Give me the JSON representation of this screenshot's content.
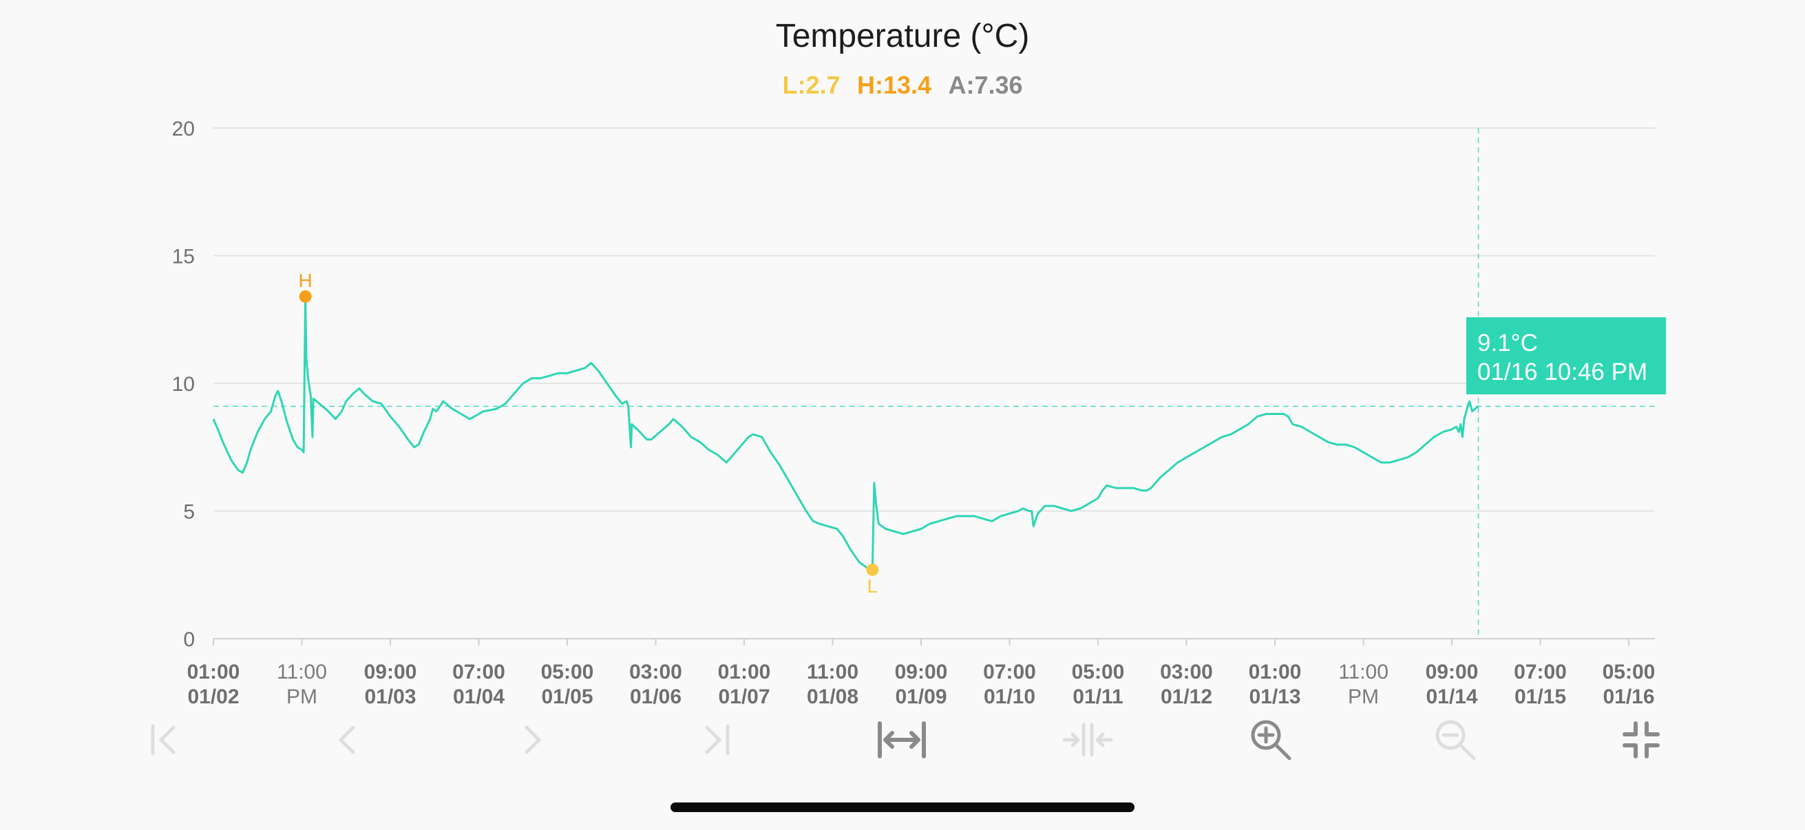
{
  "chart_data": {
    "type": "line",
    "title": "Temperature (°C)",
    "stats": {
      "low": {
        "label": "L:2.7",
        "value": 2.7,
        "color": "#f6c944"
      },
      "high": {
        "label": "H:13.4",
        "value": 13.4,
        "color": "#f5a01a"
      },
      "avg": {
        "label": "A:7.36",
        "value": 7.36,
        "color": "#8a8a8a"
      }
    },
    "ylim": [
      0,
      20
    ],
    "yticks": [
      "0",
      "5",
      "10",
      "15",
      "20"
    ],
    "grid": true,
    "line_color": "#2ed6b4",
    "xticks": [
      {
        "top": "01:00",
        "bottom": "01/02",
        "bold": true
      },
      {
        "top": "11:00",
        "bottom": "PM",
        "bold": false
      },
      {
        "top": "09:00",
        "bottom": "01/03",
        "bold": true
      },
      {
        "top": "07:00",
        "bottom": "01/04",
        "bold": true
      },
      {
        "top": "05:00",
        "bottom": "01/05",
        "bold": true
      },
      {
        "top": "03:00",
        "bottom": "01/06",
        "bold": true
      },
      {
        "top": "01:00",
        "bottom": "01/07",
        "bold": true
      },
      {
        "top": "11:00",
        "bottom": "01/08",
        "bold": true
      },
      {
        "top": "09:00",
        "bottom": "01/09",
        "bold": true
      },
      {
        "top": "07:00",
        "bottom": "01/10",
        "bold": true
      },
      {
        "top": "05:00",
        "bottom": "01/11",
        "bold": true
      },
      {
        "top": "03:00",
        "bottom": "01/12",
        "bold": true
      },
      {
        "top": "01:00",
        "bottom": "01/13",
        "bold": true
      },
      {
        "top": "11:00",
        "bottom": "PM",
        "bold": false
      },
      {
        "top": "09:00",
        "bottom": "01/14",
        "bold": true
      },
      {
        "top": "07:00",
        "bottom": "01/15",
        "bold": true
      },
      {
        "top": "05:00",
        "bottom": "01/16",
        "bold": true
      }
    ],
    "series": [
      {
        "x_start": 0,
        "x_end": 16.3,
        "points": [
          [
            0,
            8.6
          ],
          [
            0.05,
            8.2
          ],
          [
            0.12,
            7.6
          ],
          [
            0.2,
            7.0
          ],
          [
            0.28,
            6.6
          ],
          [
            0.33,
            6.5
          ],
          [
            0.38,
            6.9
          ],
          [
            0.42,
            7.4
          ],
          [
            0.5,
            8.1
          ],
          [
            0.58,
            8.6
          ],
          [
            0.65,
            8.9
          ],
          [
            0.7,
            9.5
          ],
          [
            0.73,
            9.7
          ],
          [
            0.77,
            9.3
          ],
          [
            0.83,
            8.5
          ],
          [
            0.9,
            7.8
          ],
          [
            0.95,
            7.5
          ],
          [
            1.0,
            7.4
          ],
          [
            1.02,
            7.3
          ],
          [
            1.04,
            13.4
          ],
          [
            1.05,
            11.0
          ],
          [
            1.07,
            10.2
          ],
          [
            1.1,
            9.5
          ],
          [
            1.12,
            7.9
          ],
          [
            1.13,
            9.4
          ],
          [
            1.2,
            9.2
          ],
          [
            1.3,
            8.9
          ],
          [
            1.38,
            8.6
          ],
          [
            1.45,
            8.9
          ],
          [
            1.5,
            9.3
          ],
          [
            1.58,
            9.6
          ],
          [
            1.65,
            9.8
          ],
          [
            1.7,
            9.6
          ],
          [
            1.8,
            9.3
          ],
          [
            1.9,
            9.2
          ],
          [
            2.0,
            8.7
          ],
          [
            2.1,
            8.3
          ],
          [
            2.2,
            7.8
          ],
          [
            2.27,
            7.5
          ],
          [
            2.32,
            7.6
          ],
          [
            2.38,
            8.1
          ],
          [
            2.45,
            8.6
          ],
          [
            2.48,
            9.0
          ],
          [
            2.52,
            8.9
          ],
          [
            2.6,
            9.3
          ],
          [
            2.7,
            9.0
          ],
          [
            2.8,
            8.8
          ],
          [
            2.9,
            8.6
          ],
          [
            2.95,
            8.7
          ],
          [
            3.05,
            8.9
          ],
          [
            3.2,
            9.0
          ],
          [
            3.3,
            9.2
          ],
          [
            3.4,
            9.6
          ],
          [
            3.5,
            10.0
          ],
          [
            3.6,
            10.2
          ],
          [
            3.7,
            10.2
          ],
          [
            3.8,
            10.3
          ],
          [
            3.9,
            10.4
          ],
          [
            4.0,
            10.4
          ],
          [
            4.1,
            10.5
          ],
          [
            4.2,
            10.6
          ],
          [
            4.27,
            10.8
          ],
          [
            4.35,
            10.5
          ],
          [
            4.45,
            10.0
          ],
          [
            4.55,
            9.5
          ],
          [
            4.62,
            9.2
          ],
          [
            4.67,
            9.3
          ],
          [
            4.69,
            9.1
          ],
          [
            4.72,
            7.5
          ],
          [
            4.73,
            8.4
          ],
          [
            4.82,
            8.1
          ],
          [
            4.9,
            7.8
          ],
          [
            4.95,
            7.8
          ],
          [
            5.05,
            8.1
          ],
          [
            5.15,
            8.4
          ],
          [
            5.2,
            8.6
          ],
          [
            5.3,
            8.3
          ],
          [
            5.4,
            7.9
          ],
          [
            5.5,
            7.7
          ],
          [
            5.6,
            7.4
          ],
          [
            5.7,
            7.2
          ],
          [
            5.8,
            6.9
          ],
          [
            5.9,
            7.3
          ],
          [
            6.0,
            7.7
          ],
          [
            6.05,
            7.9
          ],
          [
            6.1,
            8.0
          ],
          [
            6.2,
            7.9
          ],
          [
            6.3,
            7.3
          ],
          [
            6.4,
            6.8
          ],
          [
            6.5,
            6.2
          ],
          [
            6.6,
            5.6
          ],
          [
            6.7,
            5.0
          ],
          [
            6.78,
            4.6
          ],
          [
            6.85,
            4.5
          ],
          [
            6.95,
            4.4
          ],
          [
            7.05,
            4.3
          ],
          [
            7.12,
            4.0
          ],
          [
            7.2,
            3.5
          ],
          [
            7.3,
            3.0
          ],
          [
            7.38,
            2.8
          ],
          [
            7.42,
            2.7
          ],
          [
            7.45,
            2.7
          ],
          [
            7.47,
            6.1
          ],
          [
            7.49,
            5.3
          ],
          [
            7.52,
            4.5
          ],
          [
            7.6,
            4.3
          ],
          [
            7.7,
            4.2
          ],
          [
            7.8,
            4.1
          ],
          [
            7.9,
            4.2
          ],
          [
            8.0,
            4.3
          ],
          [
            8.1,
            4.5
          ],
          [
            8.2,
            4.6
          ],
          [
            8.3,
            4.7
          ],
          [
            8.4,
            4.8
          ],
          [
            8.5,
            4.8
          ],
          [
            8.6,
            4.8
          ],
          [
            8.7,
            4.7
          ],
          [
            8.8,
            4.6
          ],
          [
            8.9,
            4.8
          ],
          [
            9.0,
            4.9
          ],
          [
            9.1,
            5.0
          ],
          [
            9.15,
            5.1
          ],
          [
            9.22,
            5.0
          ],
          [
            9.25,
            5.0
          ],
          [
            9.27,
            4.4
          ],
          [
            9.32,
            4.9
          ],
          [
            9.4,
            5.2
          ],
          [
            9.5,
            5.2
          ],
          [
            9.6,
            5.1
          ],
          [
            9.7,
            5.0
          ],
          [
            9.8,
            5.1
          ],
          [
            9.9,
            5.3
          ],
          [
            10.0,
            5.5
          ],
          [
            10.05,
            5.8
          ],
          [
            10.1,
            6.0
          ],
          [
            10.2,
            5.9
          ],
          [
            10.3,
            5.9
          ],
          [
            10.4,
            5.9
          ],
          [
            10.5,
            5.8
          ],
          [
            10.55,
            5.8
          ],
          [
            10.6,
            5.9
          ],
          [
            10.7,
            6.3
          ],
          [
            10.8,
            6.6
          ],
          [
            10.9,
            6.9
          ],
          [
            11.0,
            7.1
          ],
          [
            11.1,
            7.3
          ],
          [
            11.2,
            7.5
          ],
          [
            11.3,
            7.7
          ],
          [
            11.4,
            7.9
          ],
          [
            11.5,
            8.0
          ],
          [
            11.6,
            8.2
          ],
          [
            11.7,
            8.4
          ],
          [
            11.8,
            8.7
          ],
          [
            11.9,
            8.8
          ],
          [
            12.0,
            8.8
          ],
          [
            12.1,
            8.8
          ],
          [
            12.15,
            8.7
          ],
          [
            12.2,
            8.4
          ],
          [
            12.3,
            8.3
          ],
          [
            12.4,
            8.1
          ],
          [
            12.5,
            7.9
          ],
          [
            12.6,
            7.7
          ],
          [
            12.7,
            7.6
          ],
          [
            12.8,
            7.6
          ],
          [
            12.9,
            7.5
          ],
          [
            13.0,
            7.3
          ],
          [
            13.1,
            7.1
          ],
          [
            13.2,
            6.9
          ],
          [
            13.3,
            6.9
          ],
          [
            13.4,
            7.0
          ],
          [
            13.5,
            7.1
          ],
          [
            13.6,
            7.3
          ],
          [
            13.7,
            7.6
          ],
          [
            13.8,
            7.9
          ],
          [
            13.9,
            8.1
          ],
          [
            14.0,
            8.2
          ],
          [
            14.05,
            8.3
          ],
          [
            14.08,
            8.1
          ],
          [
            14.1,
            8.4
          ],
          [
            14.12,
            7.9
          ],
          [
            14.14,
            8.6
          ],
          [
            14.18,
            9.1
          ],
          [
            14.2,
            9.3
          ],
          [
            14.23,
            8.9
          ],
          [
            14.26,
            9.0
          ],
          [
            14.3,
            9.1
          ]
        ],
        "sampling_note": ""
      }
    ],
    "high_marker": {
      "letter": "H",
      "x": 1.04,
      "y": 13.4
    },
    "low_marker": {
      "letter": "L",
      "x": 7.45,
      "y": 2.7
    },
    "crosshair": {
      "x": 14.3,
      "y": 9.1
    },
    "tooltip": {
      "value": "9.1°C",
      "time": "01/16 10:46 PM",
      "color": "#2ed6b4"
    }
  },
  "toolbar": {
    "first_icon": "first-page-icon",
    "prev_icon": "previous-icon",
    "next_icon": "next-icon",
    "last_icon": "last-page-icon",
    "fit_icon": "fit-width-icon",
    "split_icon": "collapse-width-icon",
    "zoom_in_icon": "zoom-in-icon",
    "zoom_out_icon": "zoom-out-icon",
    "exit_fullscreen_icon": "exit-fullscreen-icon"
  }
}
